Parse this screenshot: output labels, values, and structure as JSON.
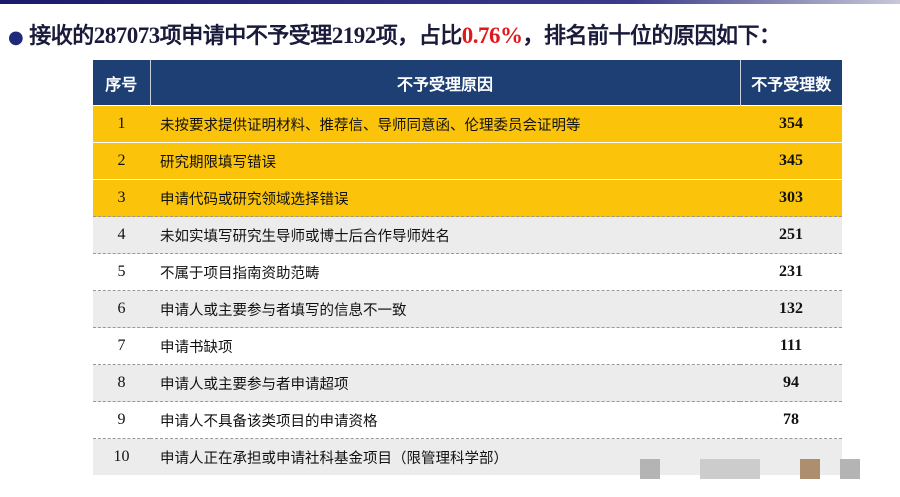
{
  "title": {
    "part1": "接收的",
    "total": "287073",
    "part2": "项申请中不予受理",
    "rejected": "2192",
    "part3": "项，占比",
    "ratio": "0.76%",
    "part4": "，排名前十位的原因如下："
  },
  "colors": {
    "header": "#1d3f74",
    "highlight": "#fbc40b",
    "ratio_text": "#e0181a"
  },
  "table": {
    "headers": [
      "序号",
      "不予受理原因",
      "不予受理数"
    ],
    "rows": [
      {
        "no": "1",
        "reason": "未按要求提供证明材料、推荐信、导师同意函、伦理委员会证明等",
        "count": "354"
      },
      {
        "no": "2",
        "reason": "研究期限填写错误",
        "count": "345"
      },
      {
        "no": "3",
        "reason": "申请代码或研究领域选择错误",
        "count": "303"
      },
      {
        "no": "4",
        "reason": "未如实填写研究生导师或博士后合作导师姓名",
        "count": "251"
      },
      {
        "no": "5",
        "reason": "不属于项目指南资助范畴",
        "count": "231"
      },
      {
        "no": "6",
        "reason": "申请人或主要参与者填写的信息不一致",
        "count": "132"
      },
      {
        "no": "7",
        "reason": "申请书缺项",
        "count": "111"
      },
      {
        "no": "8",
        "reason": "申请人或主要参与者申请超项",
        "count": "94"
      },
      {
        "no": "9",
        "reason": "申请人不具备该类项目的申请资格",
        "count": "78"
      },
      {
        "no": "10",
        "reason": "申请人正在承担或申请社科基金项目（限管理科学部）",
        "count": ""
      }
    ]
  }
}
